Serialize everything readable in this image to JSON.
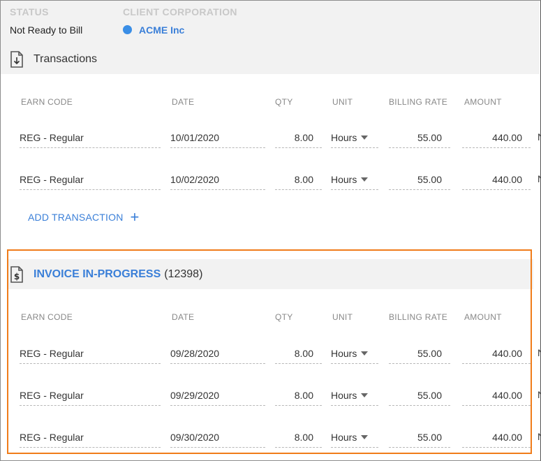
{
  "header": {
    "status_label": "STATUS",
    "status_value": "Not Ready to Bill",
    "client_label": "CLIENT CORPORATION",
    "client_value": "ACME Inc",
    "client_dot_color": "#3a8ee6"
  },
  "transactions": {
    "title": "Transactions",
    "icon": "download-document-icon",
    "columns": [
      "EARN CODE",
      "DATE",
      "QTY",
      "UNIT",
      "BILLING RATE",
      "AMOUNT"
    ],
    "rows": [
      {
        "earn_code": "REG - Regular",
        "date": "10/01/2020",
        "qty": "8.00",
        "unit": "Hours",
        "rate": "55.00",
        "amount": "440.00",
        "extra": "N"
      },
      {
        "earn_code": "REG - Regular",
        "date": "10/02/2020",
        "qty": "8.00",
        "unit": "Hours",
        "rate": "55.00",
        "amount": "440.00",
        "extra": "N"
      }
    ],
    "add_label": "ADD TRANSACTION",
    "add_icon": "plus-icon"
  },
  "invoice": {
    "title": "INVOICE IN-PROGRESS",
    "number": "(12398)",
    "icon": "dollar-document-icon",
    "highlight_color": "#f07c1a",
    "columns": [
      "EARN CODE",
      "DATE",
      "QTY",
      "UNIT",
      "BILLING RATE",
      "AMOUNT"
    ],
    "rows": [
      {
        "earn_code": "REG - Regular",
        "date": "09/28/2020",
        "qty": "8.00",
        "unit": "Hours",
        "rate": "55.00",
        "amount": "440.00",
        "extra": "N"
      },
      {
        "earn_code": "REG - Regular",
        "date": "09/29/2020",
        "qty": "8.00",
        "unit": "Hours",
        "rate": "55.00",
        "amount": "440.00",
        "extra": "N"
      },
      {
        "earn_code": "REG - Regular",
        "date": "09/30/2020",
        "qty": "8.00",
        "unit": "Hours",
        "rate": "55.00",
        "amount": "440.00",
        "extra": "N"
      }
    ]
  }
}
